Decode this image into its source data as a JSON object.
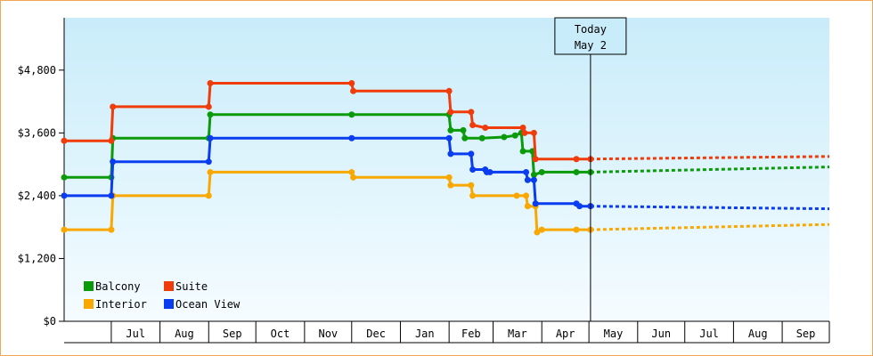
{
  "chart_data": {
    "type": "line",
    "title": "",
    "xlabel": "",
    "ylabel": "",
    "ylim": [
      0,
      5800
    ],
    "y_ticks": [
      0,
      1200,
      2400,
      3600,
      4800
    ],
    "y_tick_labels": [
      "$0",
      "$1,200",
      "$2,400",
      "$3,600",
      "$4,800"
    ],
    "x_range": [
      "2021-06-01",
      "2022-10-01"
    ],
    "x_month_labels": [
      "Jul",
      "Aug",
      "Sep",
      "Oct",
      "Nov",
      "Dec",
      "Jan",
      "Feb",
      "Mar",
      "Apr",
      "May",
      "Jun",
      "Jul",
      "Aug",
      "Sep"
    ],
    "x_month_starts": [
      "2021-07-01",
      "2021-08-01",
      "2021-09-01",
      "2021-10-01",
      "2021-11-01",
      "2021-12-01",
      "2022-01-01",
      "2022-02-01",
      "2022-03-01",
      "2022-04-01",
      "2022-05-01",
      "2022-06-01",
      "2022-07-01",
      "2022-08-01",
      "2022-09-01",
      "2022-10-01"
    ],
    "today_marker": {
      "date": "2022-05-02",
      "line1": "Today",
      "line2": "May 2"
    },
    "legend_position": "bottom-left",
    "grid": false,
    "series": [
      {
        "name": "Balcony",
        "color": "#0a9a0a",
        "points": [
          [
            "2021-06-01",
            2750
          ],
          [
            "2021-07-01",
            2750
          ],
          [
            "2021-07-02",
            3500
          ],
          [
            "2021-09-01",
            3500
          ],
          [
            "2021-09-02",
            3950
          ],
          [
            "2021-12-01",
            3950
          ],
          [
            "2022-02-01",
            3950
          ],
          [
            "2022-02-02",
            3650
          ],
          [
            "2022-02-10",
            3650
          ],
          [
            "2022-02-11",
            3500
          ],
          [
            "2022-02-22",
            3500
          ],
          [
            "2022-03-08",
            3520
          ],
          [
            "2022-03-15",
            3550
          ],
          [
            "2022-03-19",
            3600
          ],
          [
            "2022-03-20",
            3250
          ],
          [
            "2022-03-26",
            3250
          ],
          [
            "2022-03-27",
            2800
          ],
          [
            "2022-04-01",
            2850
          ],
          [
            "2022-04-23",
            2850
          ],
          [
            "2022-05-02",
            2850
          ]
        ],
        "forecast": [
          [
            "2022-05-02",
            2850
          ],
          [
            "2022-10-01",
            2950
          ]
        ]
      },
      {
        "name": "Suite",
        "color": "#f03c0a",
        "points": [
          [
            "2021-06-01",
            3450
          ],
          [
            "2021-07-01",
            3450
          ],
          [
            "2021-07-02",
            4100
          ],
          [
            "2021-09-01",
            4100
          ],
          [
            "2021-09-02",
            4550
          ],
          [
            "2021-12-01",
            4550
          ],
          [
            "2021-12-02",
            4400
          ],
          [
            "2022-02-01",
            4400
          ],
          [
            "2022-02-02",
            4000
          ],
          [
            "2022-02-15",
            4000
          ],
          [
            "2022-02-16",
            3750
          ],
          [
            "2022-02-24",
            3700
          ],
          [
            "2022-03-20",
            3700
          ],
          [
            "2022-03-21",
            3600
          ],
          [
            "2022-03-27",
            3600
          ],
          [
            "2022-03-28",
            3100
          ],
          [
            "2022-04-23",
            3100
          ],
          [
            "2022-05-02",
            3100
          ]
        ],
        "forecast": [
          [
            "2022-05-02",
            3100
          ],
          [
            "2022-10-01",
            3150
          ]
        ]
      },
      {
        "name": "Interior",
        "color": "#f8a800",
        "points": [
          [
            "2021-06-01",
            1750
          ],
          [
            "2021-07-01",
            1750
          ],
          [
            "2021-07-02",
            2400
          ],
          [
            "2021-09-01",
            2400
          ],
          [
            "2021-09-02",
            2850
          ],
          [
            "2021-12-01",
            2850
          ],
          [
            "2021-12-02",
            2750
          ],
          [
            "2022-02-01",
            2750
          ],
          [
            "2022-02-02",
            2600
          ],
          [
            "2022-02-15",
            2600
          ],
          [
            "2022-02-16",
            2400
          ],
          [
            "2022-03-16",
            2400
          ],
          [
            "2022-03-22",
            2400
          ],
          [
            "2022-03-23",
            2200
          ],
          [
            "2022-03-28",
            2200
          ],
          [
            "2022-03-29",
            1700
          ],
          [
            "2022-04-01",
            1750
          ],
          [
            "2022-04-23",
            1750
          ],
          [
            "2022-05-02",
            1750
          ]
        ],
        "forecast": [
          [
            "2022-05-02",
            1750
          ],
          [
            "2022-10-01",
            1850
          ]
        ]
      },
      {
        "name": "Ocean View",
        "color": "#0a3cf0",
        "points": [
          [
            "2021-06-01",
            2400
          ],
          [
            "2021-07-01",
            2400
          ],
          [
            "2021-07-02",
            3050
          ],
          [
            "2021-09-01",
            3050
          ],
          [
            "2021-09-02",
            3500
          ],
          [
            "2021-12-01",
            3500
          ],
          [
            "2022-02-01",
            3500
          ],
          [
            "2022-02-02",
            3200
          ],
          [
            "2022-02-15",
            3200
          ],
          [
            "2022-02-16",
            2900
          ],
          [
            "2022-02-24",
            2900
          ],
          [
            "2022-02-25",
            2850
          ],
          [
            "2022-02-27",
            2850
          ],
          [
            "2022-03-22",
            2850
          ],
          [
            "2022-03-23",
            2700
          ],
          [
            "2022-03-27",
            2700
          ],
          [
            "2022-03-28",
            2250
          ],
          [
            "2022-04-23",
            2250
          ],
          [
            "2022-04-25",
            2200
          ],
          [
            "2022-05-02",
            2200
          ]
        ],
        "forecast": [
          [
            "2022-05-02",
            2200
          ],
          [
            "2022-10-01",
            2150
          ]
        ]
      }
    ]
  }
}
